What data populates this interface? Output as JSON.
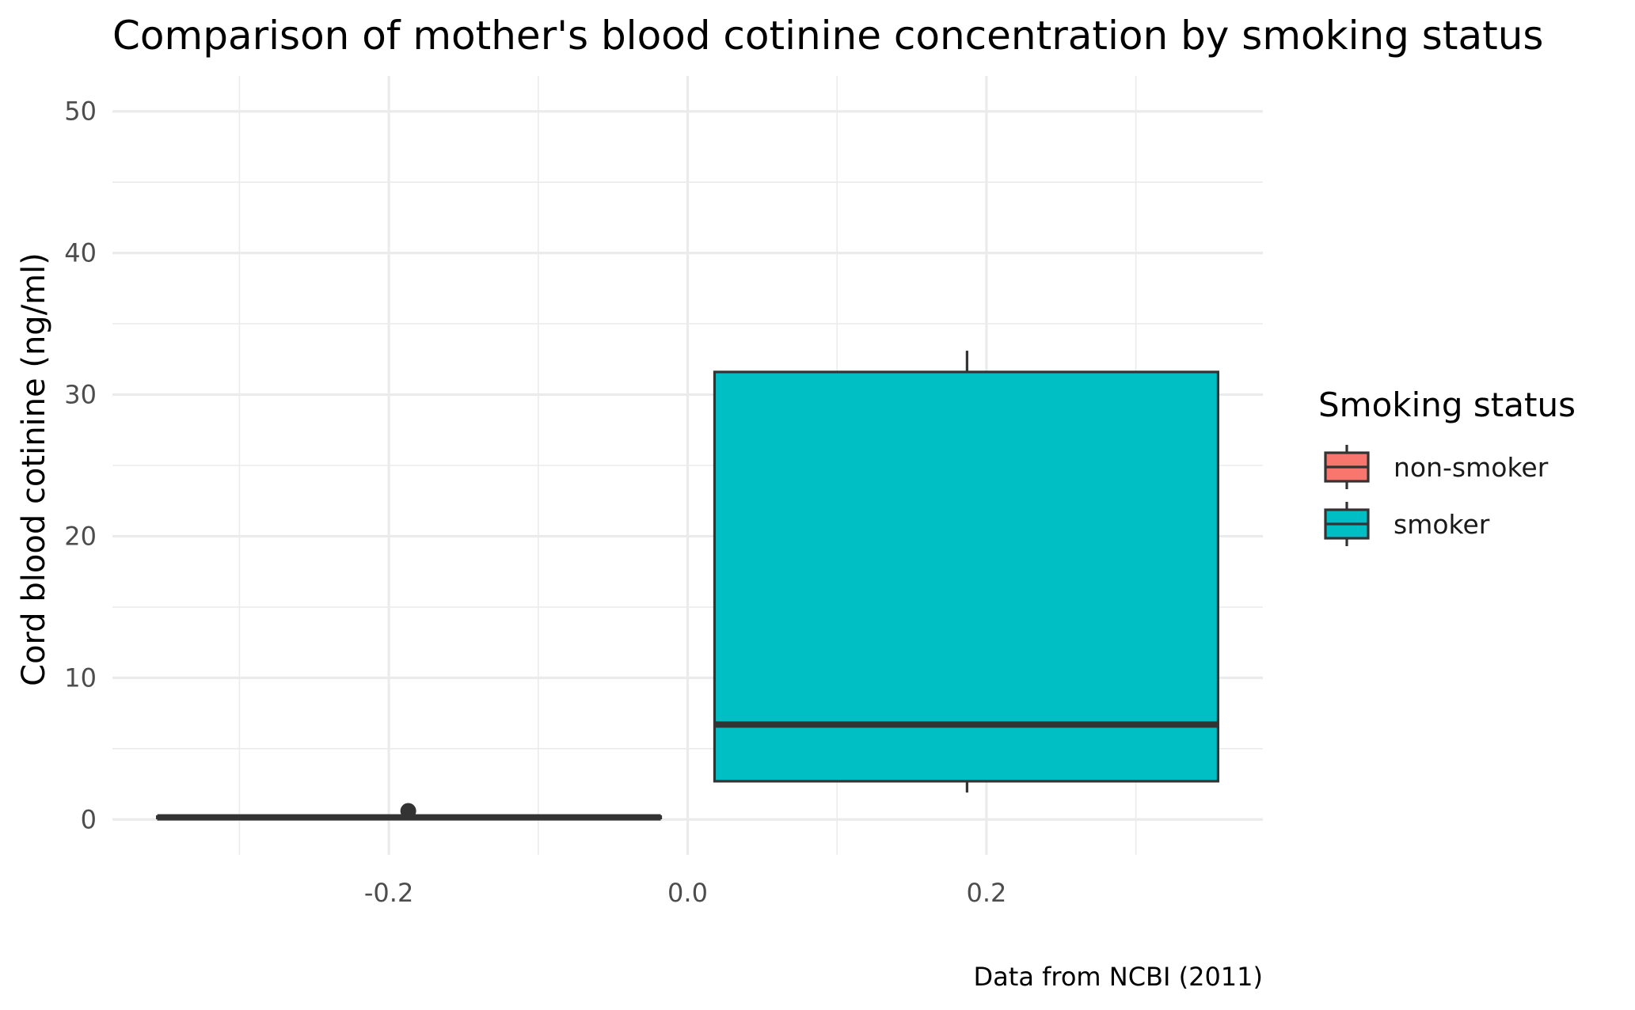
{
  "chart_data": {
    "type": "boxplot",
    "title": "Comparison of mother's blood cotinine concentration by smoking status",
    "xlabel": "",
    "ylabel": "Cord blood cotinine (ng/ml)",
    "caption": "Data from NCBI (2011)",
    "xlim": [
      -0.385,
      0.385
    ],
    "ylim": [
      -2.5,
      52.5
    ],
    "x_ticks": [
      -0.2,
      0.0,
      0.2
    ],
    "x_tick_labels": [
      "-0.2",
      "0.0",
      "0.2"
    ],
    "y_ticks": [
      0,
      10,
      20,
      30,
      40,
      50
    ],
    "y_tick_labels": [
      "0",
      "10",
      "20",
      "30",
      "40",
      "50"
    ],
    "grid": true,
    "legend": {
      "title": "Smoking status",
      "position": "right",
      "entries": [
        "non-smoker",
        "smoker"
      ]
    },
    "series": [
      {
        "name": "non-smoker",
        "color": "#F8766D",
        "x_range": [
          -0.355,
          -0.018
        ],
        "whisker_low": 0.1,
        "q1": 0.1,
        "median": 0.15,
        "q3": 0.2,
        "whisker_high": 0.3,
        "outliers": [
          {
            "x": -0.187,
            "y": 0.6
          }
        ]
      },
      {
        "name": "smoker",
        "color": "#00BFC4",
        "x_range": [
          0.018,
          0.355
        ],
        "whisker_low": 1.9,
        "q1": 2.7,
        "median": 6.7,
        "q3": 31.6,
        "whisker_high": 33.1,
        "whisker_x": 0.187,
        "outliers": []
      }
    ]
  }
}
